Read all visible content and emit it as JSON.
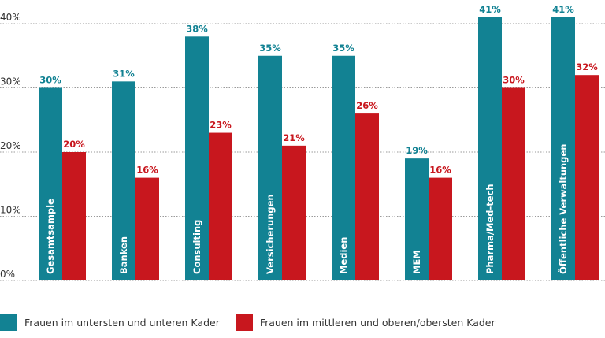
{
  "chart_data": {
    "type": "bar",
    "categories": [
      "Gesamtsample",
      "Banken",
      "Consulting",
      "Versicherungen",
      "Medien",
      "MEM",
      "Pharma/Med-tech",
      "Öffentliche Verwaltungen"
    ],
    "series": [
      {
        "name": "Frauen im untersten und unteren Kader",
        "values": [
          30,
          31,
          38,
          35,
          35,
          19,
          41,
          41
        ],
        "color": "#128293"
      },
      {
        "name": "Frauen im mittleren und oberen/obersten Kader",
        "values": [
          20,
          16,
          23,
          21,
          26,
          16,
          30,
          32
        ],
        "color": "#c8171e"
      }
    ],
    "value_labels": [
      [
        "30%",
        "31%",
        "38%",
        "35%",
        "35%",
        "19%",
        "41%",
        "41%"
      ],
      [
        "20%",
        "16%",
        "23%",
        "21%",
        "26%",
        "16%",
        "30%",
        "32%"
      ]
    ],
    "y_ticks": [
      0,
      10,
      20,
      30,
      40
    ],
    "y_tick_labels": [
      "0%",
      "10%",
      "20%",
      "30%",
      "40%"
    ],
    "ylim": [
      0,
      40
    ],
    "grid": true,
    "legend_position": "bottom-left",
    "title": "",
    "xlabel": "",
    "ylabel": ""
  }
}
